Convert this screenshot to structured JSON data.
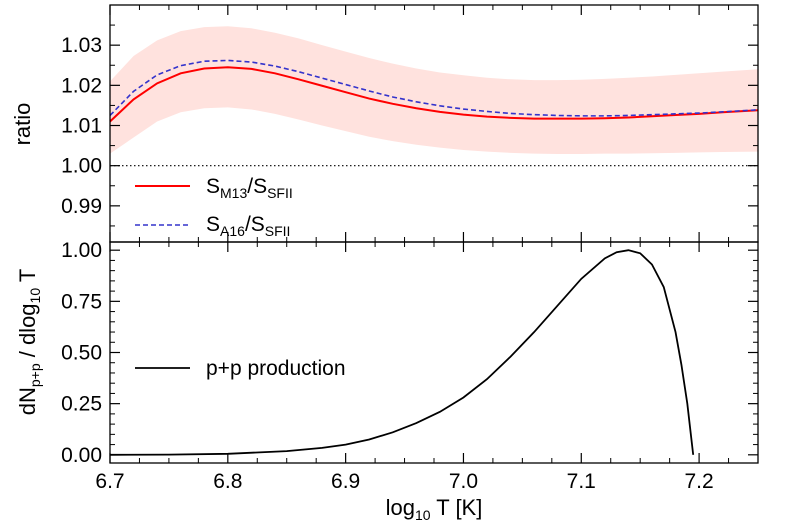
{
  "chart_data": [
    {
      "type": "line",
      "panel": "top",
      "ylabel": "ratio",
      "xlim": [
        6.7,
        7.25
      ],
      "ylim": [
        0.981,
        1.04
      ],
      "yticks": [
        0.99,
        1.0,
        1.01,
        1.02,
        1.03
      ],
      "ytick_labels": [
        "0.99",
        "1.00",
        "1.01",
        "1.02",
        "1.03"
      ],
      "reference_line": {
        "y": 1.0,
        "style": "dotted",
        "color": "#000000"
      },
      "x": [
        6.7,
        6.72,
        6.74,
        6.76,
        6.78,
        6.8,
        6.82,
        6.84,
        6.86,
        6.88,
        6.9,
        6.92,
        6.94,
        6.96,
        6.98,
        7.0,
        7.02,
        7.04,
        7.06,
        7.08,
        7.1,
        7.12,
        7.14,
        7.16,
        7.18,
        7.2,
        7.22,
        7.25
      ],
      "band": {
        "color": "#ffe2de",
        "upper": [
          1.021,
          1.0273,
          1.0312,
          1.0335,
          1.0345,
          1.0347,
          1.0342,
          1.0331,
          1.0317,
          1.03,
          1.0284,
          1.0268,
          1.0254,
          1.0242,
          1.0232,
          1.0225,
          1.0219,
          1.0215,
          1.0213,
          1.0213,
          1.0214,
          1.0216,
          1.0219,
          1.0222,
          1.0226,
          1.023,
          1.0234,
          1.024
        ],
        "lower": [
          1.003,
          1.007,
          1.011,
          1.0133,
          1.0143,
          1.0145,
          1.014,
          1.0129,
          1.0115,
          1.01,
          1.0086,
          1.0072,
          1.0061,
          1.0052,
          1.0045,
          1.0039,
          1.0035,
          1.0032,
          1.003,
          1.0029,
          1.0029,
          1.003,
          1.003,
          1.0031,
          1.0032,
          1.0033,
          1.0034,
          1.0035
        ]
      },
      "series": [
        {
          "name": "S_M13/S_SFII",
          "color": "#ff0000",
          "style": "solid",
          "values": [
            1.011,
            1.0165,
            1.0205,
            1.023,
            1.0242,
            1.0245,
            1.0241,
            1.023,
            1.0215,
            1.0199,
            1.0183,
            1.0167,
            1.0154,
            1.0143,
            1.0134,
            1.0127,
            1.0122,
            1.0119,
            1.0117,
            1.0117,
            1.0117,
            1.0118,
            1.012,
            1.0123,
            1.0126,
            1.0129,
            1.0133,
            1.0138
          ]
        },
        {
          "name": "S_A16/S_SFII",
          "color": "#3333cc",
          "style": "dashed",
          "values": [
            1.0125,
            1.0185,
            1.0226,
            1.0249,
            1.026,
            1.0262,
            1.0258,
            1.0248,
            1.0234,
            1.0218,
            1.0202,
            1.0186,
            1.0171,
            1.0159,
            1.0149,
            1.0141,
            1.0135,
            1.013,
            1.0127,
            1.0125,
            1.0124,
            1.0124,
            1.0125,
            1.0127,
            1.0129,
            1.0131,
            1.0134,
            1.0139
          ]
        }
      ],
      "legend": {
        "placement": "lower-left",
        "items": [
          {
            "main": "S",
            "sub": "M13",
            "sep": "/S",
            "sub2": "SFII"
          },
          {
            "main": "S",
            "sub": "A16",
            "sep": "/S",
            "sub2": "SFII"
          }
        ]
      }
    },
    {
      "type": "line",
      "panel": "bottom",
      "ylabel": {
        "main": "dN",
        "sub": "p+p",
        "mid": " / dlog",
        "sub2": "10",
        "end": " T"
      },
      "xlabel": {
        "main": "log",
        "sub": "10",
        "end": " T [K]"
      },
      "xlim": [
        6.7,
        7.25
      ],
      "ylim": [
        -0.04,
        1.04
      ],
      "xticks": [
        6.7,
        6.8,
        6.9,
        7.0,
        7.1,
        7.2
      ],
      "xtick_labels": [
        "6.7",
        "6.8",
        "6.9",
        "7.0",
        "7.1",
        "7.2"
      ],
      "yticks": [
        0.0,
        0.25,
        0.5,
        0.75,
        1.0
      ],
      "ytick_labels": [
        "0.00",
        "0.25",
        "0.50",
        "0.75",
        "1.00"
      ],
      "x": [
        6.7,
        6.75,
        6.8,
        6.85,
        6.88,
        6.9,
        6.92,
        6.94,
        6.96,
        6.98,
        7.0,
        7.02,
        7.04,
        7.06,
        7.08,
        7.1,
        7.12,
        7.13,
        7.14,
        7.15,
        7.16,
        7.17,
        7.18,
        7.185,
        7.19,
        7.193,
        7.195
      ],
      "series": [
        {
          "name": "p+p production",
          "color": "#000000",
          "style": "solid",
          "values": [
            0.0,
            0.001,
            0.005,
            0.018,
            0.034,
            0.05,
            0.075,
            0.11,
            0.155,
            0.21,
            0.28,
            0.37,
            0.48,
            0.6,
            0.73,
            0.86,
            0.96,
            0.99,
            1.0,
            0.985,
            0.93,
            0.82,
            0.6,
            0.44,
            0.25,
            0.1,
            0.0
          ]
        }
      ],
      "legend": {
        "placement": "center-left",
        "items": [
          {
            "text": "p+p production"
          }
        ]
      }
    }
  ]
}
